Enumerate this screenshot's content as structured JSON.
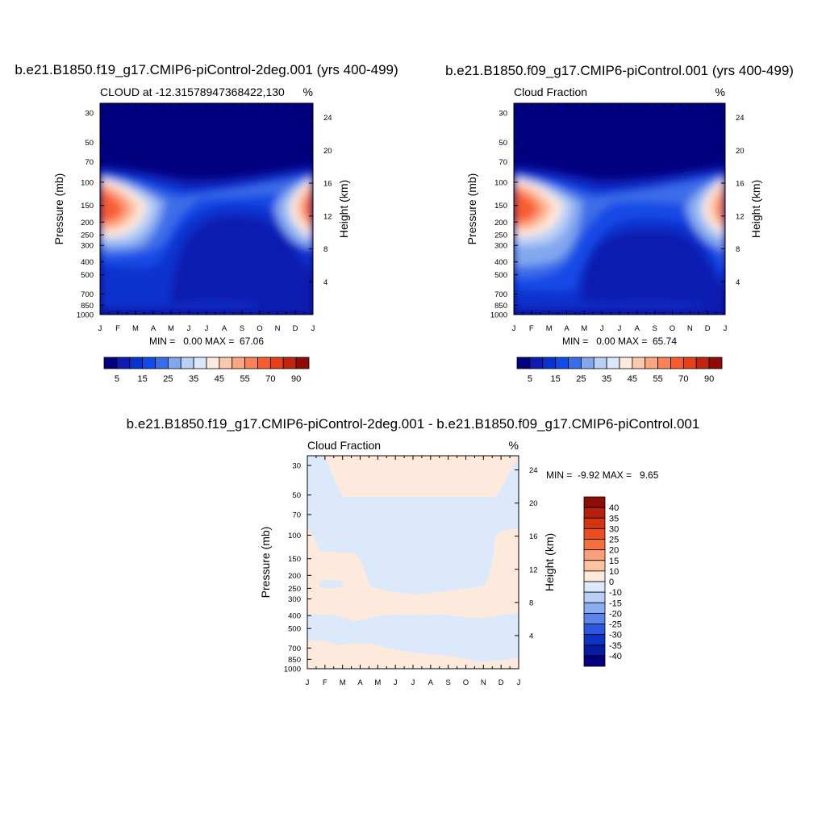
{
  "chart_data": [
    {
      "type": "heatmap",
      "title": "b.e21.B1850.f19_g17.CMIP6-piControl-2deg.001 (yrs 400-499)",
      "left_label": "CLOUD at -12.31578947368422,130",
      "units": "%",
      "ylabel": "Pressure (mb)",
      "ylabel_right": "Height (km)",
      "x_ticks": [
        "J",
        "F",
        "M",
        "A",
        "M",
        "J",
        "J",
        "A",
        "S",
        "O",
        "N",
        "D",
        "J"
      ],
      "y_ticks": [
        30,
        50,
        70,
        100,
        150,
        200,
        250,
        300,
        400,
        500,
        700,
        850,
        1000
      ],
      "height_ticks": [
        24,
        20,
        16,
        12,
        8,
        4
      ],
      "min_max": "MIN =   0.00 MAX =  67.06",
      "colorbar_labels": [
        "5",
        "15",
        "25",
        "35",
        "45",
        "55",
        "70",
        "90"
      ],
      "colorbar_colors": [
        "#03007f",
        "#0c1bb0",
        "#0b32cd",
        "#1349e6",
        "#3c6de8",
        "#82a7ef",
        "#b9cff6",
        "#d9e8fc",
        "#feeadc",
        "#fdc7ad",
        "#fca581",
        "#fb8159",
        "#f65b32",
        "#e6401a",
        "#c0260f",
        "#8f0b05"
      ]
    },
    {
      "type": "heatmap",
      "title": "b.e21.B1850.f09_g17.CMIP6-piControl.001 (yrs 400-499)",
      "left_label": "Cloud Fraction",
      "units": "%",
      "ylabel": "Pressure (mb)",
      "ylabel_right": "Height (km)",
      "x_ticks": [
        "J",
        "F",
        "M",
        "A",
        "M",
        "J",
        "J",
        "A",
        "S",
        "O",
        "N",
        "D",
        "J"
      ],
      "y_ticks": [
        30,
        50,
        70,
        100,
        150,
        200,
        250,
        300,
        400,
        500,
        700,
        850,
        1000
      ],
      "height_ticks": [
        24,
        20,
        16,
        12,
        8,
        4
      ],
      "min_max": "MIN =   0.00 MAX =  65.74",
      "colorbar_labels": [
        "5",
        "15",
        "25",
        "35",
        "45",
        "55",
        "70",
        "90"
      ],
      "colorbar_colors": [
        "#03007f",
        "#0c1bb0",
        "#0b32cd",
        "#1349e6",
        "#3c6de8",
        "#82a7ef",
        "#b9cff6",
        "#d9e8fc",
        "#feeadc",
        "#fdc7ad",
        "#fca581",
        "#fb8159",
        "#f65b32",
        "#e6401a",
        "#c0260f",
        "#8f0b05"
      ]
    },
    {
      "type": "heatmap",
      "title": "b.e21.B1850.f19_g17.CMIP6-piControl-2deg.001 - b.e21.B1850.f09_g17.CMIP6-piControl.001",
      "left_label": "Cloud Fraction",
      "units": "%",
      "ylabel": "Pressure (mb)",
      "ylabel_right": "Height (km)",
      "x_ticks": [
        "J",
        "F",
        "M",
        "A",
        "M",
        "J",
        "J",
        "A",
        "S",
        "O",
        "N",
        "D",
        "J"
      ],
      "y_ticks": [
        30,
        50,
        70,
        100,
        150,
        200,
        250,
        300,
        400,
        500,
        700,
        850,
        1000
      ],
      "height_ticks": [
        24,
        20,
        16,
        12,
        8,
        4
      ],
      "min_max": "MIN =  -9.92 MAX =   9.65",
      "colorbar_labels": [
        "40",
        "35",
        "30",
        "25",
        "20",
        "15",
        "10",
        "0",
        "-10",
        "-15",
        "-20",
        "-25",
        "-30",
        "-35",
        "-40"
      ],
      "colorbar_colors": [
        "#8f0b05",
        "#b3200c",
        "#d33514",
        "#ea4d22",
        "#f5703c",
        "#f9a07a",
        "#fdc2a0",
        "#feead9",
        "#dbe9fb",
        "#b9cff6",
        "#8aaeef",
        "#5a84ea",
        "#2a59e0",
        "#0c32c6",
        "#061ba0",
        "#03007f"
      ]
    }
  ]
}
